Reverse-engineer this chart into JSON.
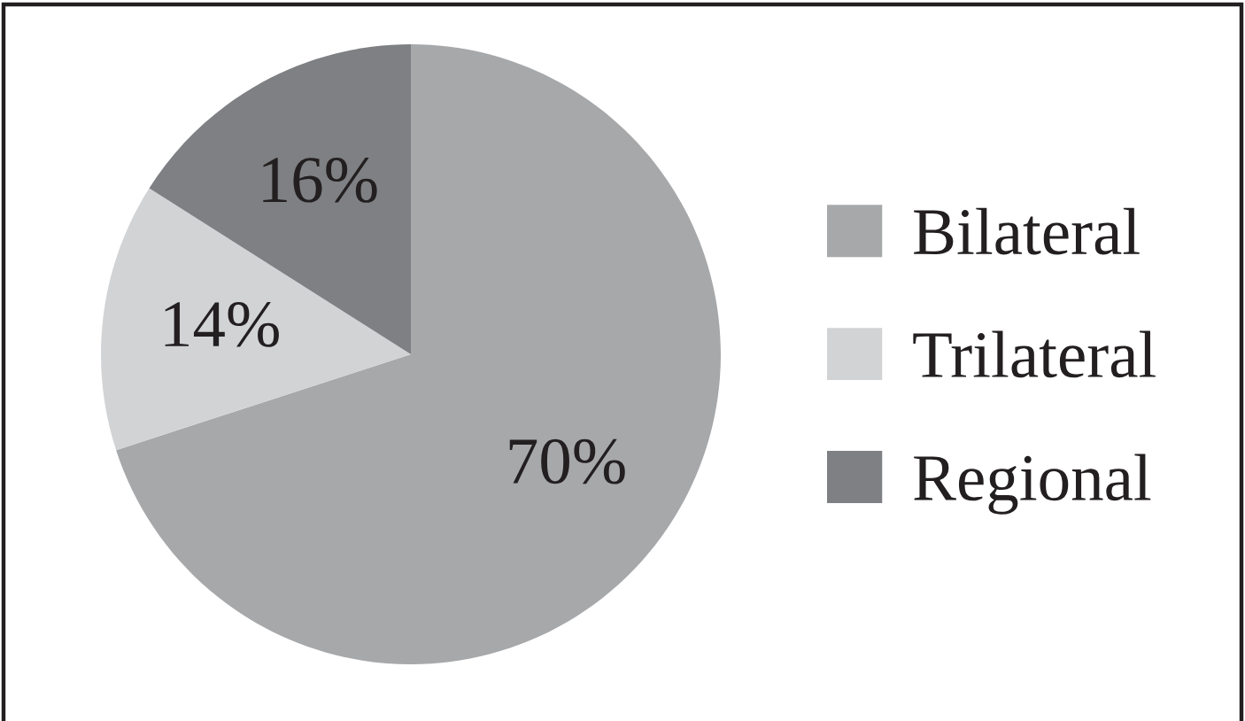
{
  "chart_data": {
    "type": "pie",
    "categories": [
      "Bilateral",
      "Trilateral",
      "Regional"
    ],
    "values": [
      70,
      14,
      16
    ],
    "colors": [
      "#a7a8aa",
      "#d2d3d5",
      "#7f8083"
    ],
    "value_labels": [
      "70%",
      "14%",
      "16%"
    ],
    "legend": "right"
  }
}
